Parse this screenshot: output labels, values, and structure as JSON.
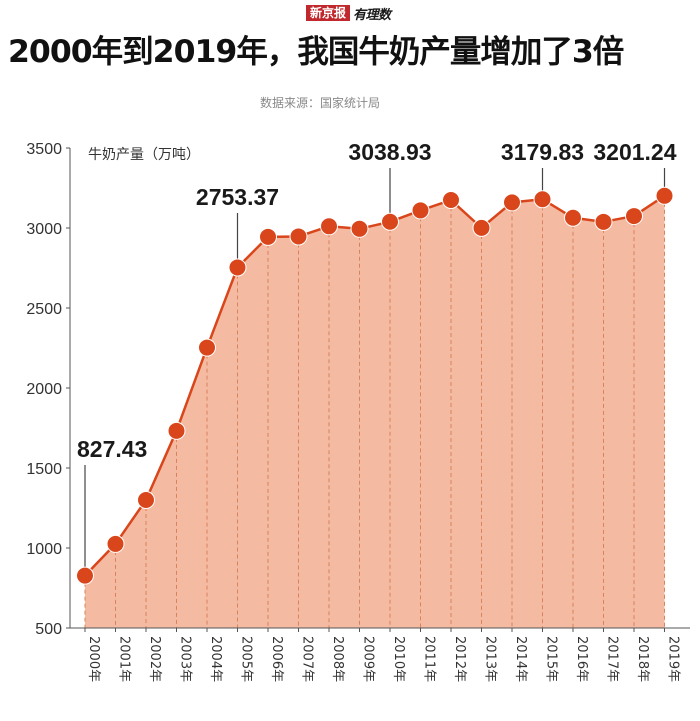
{
  "header": {
    "brand": "新京报",
    "brand_sub": "有理数",
    "title": "2000年到2019年，我国牛奶产量增加了3倍",
    "source": "数据来源：国家统计局"
  },
  "colors": {
    "line": "#d9461b",
    "marker": "#d9461b",
    "area": "#f4bba2",
    "axis": "#555555",
    "gridline": "#d9825e"
  },
  "chart_data": {
    "type": "area",
    "title": "2000年到2019年，我国牛奶产量增加了3倍",
    "ylabel": "牛奶产量（万吨）",
    "xlabel": "",
    "ylim": [
      500,
      3500
    ],
    "yticks": [
      500,
      1000,
      1500,
      2000,
      2500,
      3000,
      3500
    ],
    "categories": [
      "2000年",
      "2001年",
      "2002年",
      "2003年",
      "2004年",
      "2005年",
      "2006年",
      "2007年",
      "2008年",
      "2009年",
      "2010年",
      "2011年",
      "2012年",
      "2013年",
      "2014年",
      "2015年",
      "2016年",
      "2017年",
      "2018年",
      "2019年"
    ],
    "series": [
      {
        "values": [
          827.43,
          1025.5,
          1300.1,
          1732.4,
          2252.6,
          2753.37,
          2944.6,
          2947.1,
          3010.6,
          2995.1,
          3038.93,
          3109.9,
          3174.9,
          3000.8,
          3159.9,
          3179.83,
          3064.0,
          3038.6,
          3074.6,
          3201.24
        ]
      }
    ],
    "annotations": [
      {
        "category": "2000年",
        "label": "827.43"
      },
      {
        "category": "2005年",
        "label": "2753.37"
      },
      {
        "category": "2010年",
        "label": "3038.93"
      },
      {
        "category": "2015年",
        "label": "3179.83"
      },
      {
        "category": "2019年",
        "label": "3201.24"
      }
    ],
    "grid": "vertical dashed lines at each year"
  }
}
